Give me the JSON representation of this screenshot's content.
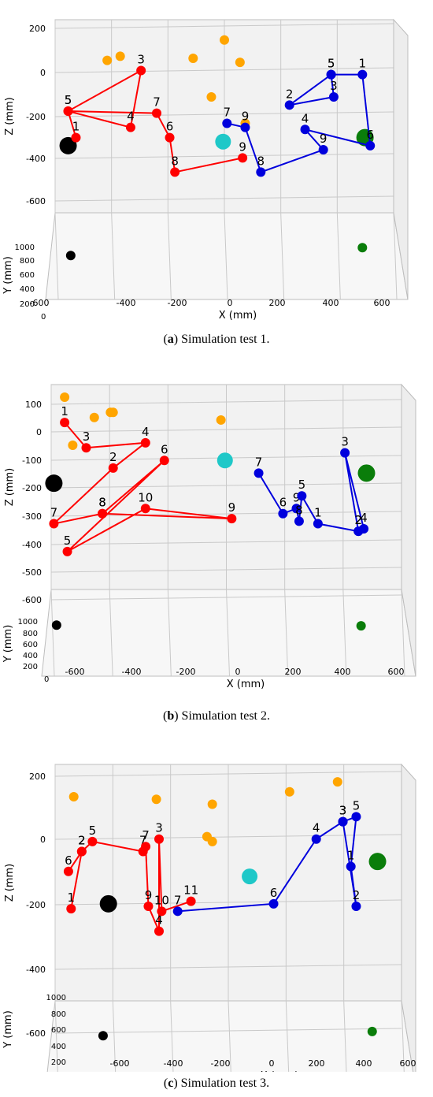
{
  "colors": {
    "team_red": "#ff0000",
    "team_blue": "#0000dd",
    "orange_targets": "#ffa500",
    "cyan_center": "#1fc8c8",
    "black_base": "#000000",
    "green_base": "#0a7d0a",
    "grid": "#c9c9c9",
    "pane": "#f2f2f2"
  },
  "captions": [
    {
      "letter": "a",
      "text": "Simulation test 1."
    },
    {
      "letter": "b",
      "text": "Simulation test 2."
    },
    {
      "letter": "c",
      "text": "Simulation test 3."
    }
  ],
  "chart_data": [
    {
      "type": "scatter",
      "title": "",
      "xlabel": "X (mm)",
      "ylabel": "Y (mm)",
      "zlabel": "Z (mm)",
      "x_ticks": [
        "-600",
        "-400",
        "-200",
        "0",
        "200",
        "400",
        "600"
      ],
      "y_ticks": [
        "200",
        "400",
        "600",
        "800",
        "1000"
      ],
      "z_ticks": [
        "200",
        "0",
        "-200",
        "-400",
        "-600"
      ],
      "xlim": [
        -650,
        650
      ],
      "zlim": [
        -700,
        250
      ],
      "orange_points": [
        [
          -450,
          50
        ],
        [
          -400,
          70
        ],
        [
          -120,
          60
        ],
        [
          0,
          150
        ],
        [
          60,
          40
        ],
        [
          -50,
          -130
        ],
        [
          80,
          -260
        ]
      ],
      "cyan_point": [
        -5,
        -350
      ],
      "black_point": [
        -600,
        -370
      ],
      "black_projection": [
        -590,
        770
      ],
      "green_point": [
        540,
        -330
      ],
      "green_projection": [
        530,
        880
      ],
      "red_path": [
        {
          "label": "1",
          "x": -570,
          "z": -330
        },
        {
          "label": "5",
          "x": -600,
          "z": -200
        },
        {
          "label": "3",
          "x": -320,
          "z": 0
        },
        {
          "label": "4",
          "x": -360,
          "z": -280
        },
        {
          "label": "5",
          "x": -600,
          "z": -200
        },
        {
          "label": "7",
          "x": -260,
          "z": -210
        },
        {
          "label": "6",
          "x": -210,
          "z": -330
        },
        {
          "label": "8",
          "x": -190,
          "z": -500
        },
        {
          "label": "9",
          "x": 70,
          "z": -430
        }
      ],
      "blue_path": [
        {
          "label": "7",
          "x": 10,
          "z": -260
        },
        {
          "label": "9",
          "x": 80,
          "z": -280
        },
        {
          "label": "8",
          "x": 140,
          "z": -500
        },
        {
          "label": "9",
          "x": 380,
          "z": -390
        },
        {
          "label": "4",
          "x": 310,
          "z": -290
        },
        {
          "label": "6",
          "x": 560,
          "z": -370
        },
        {
          "label": "1",
          "x": 530,
          "z": -20
        },
        {
          "label": "5",
          "x": 410,
          "z": -20
        },
        {
          "label": "3",
          "x": 420,
          "z": -130
        },
        {
          "label": "2",
          "x": 250,
          "z": -170
        },
        {
          "label": "5",
          "x": 410,
          "z": -20
        }
      ]
    },
    {
      "type": "scatter",
      "title": "",
      "xlabel": "X (mm)",
      "ylabel": "Y (mm)",
      "zlabel": "Z (mm)",
      "x_ticks": [
        "-600",
        "-400",
        "-200",
        "0",
        "200",
        "400",
        "600"
      ],
      "y_ticks": [
        "200",
        "400",
        "600",
        "800",
        "1000"
      ],
      "z_ticks": [
        "100",
        "0",
        "-100",
        "-200",
        "-300",
        "-400",
        "-500",
        "-600"
      ],
      "xlim": [
        -650,
        650
      ],
      "zlim": [
        -660,
        150
      ],
      "orange_points": [
        [
          -600,
          100
        ],
        [
          -570,
          -90
        ],
        [
          -490,
          20
        ],
        [
          -430,
          40
        ],
        [
          -420,
          40
        ],
        [
          -20,
          10
        ]
      ],
      "cyan_point": [
        -5,
        -150
      ],
      "black_point": [
        -640,
        -240
      ],
      "black_projection": [
        -630,
        870
      ],
      "green_point": [
        520,
        -200
      ],
      "green_projection": [
        500,
        860
      ],
      "red_path": [
        {
          "label": "1",
          "x": -600,
          "z": 0
        },
        {
          "label": "3",
          "x": -520,
          "z": -100
        },
        {
          "label": "4",
          "x": -300,
          "z": -80
        },
        {
          "label": "2",
          "x": -420,
          "z": -180
        },
        {
          "label": "7",
          "x": -640,
          "z": -400
        },
        {
          "label": "8",
          "x": -460,
          "z": -360
        },
        {
          "label": "6",
          "x": -230,
          "z": -150
        },
        {
          "label": "5",
          "x": -590,
          "z": -510
        },
        {
          "label": "10",
          "x": -300,
          "z": -340
        },
        {
          "label": "9",
          "x": 20,
          "z": -380
        },
        {
          "label": "8",
          "x": -460,
          "z": -360
        }
      ],
      "blue_path": [
        {
          "label": "7",
          "x": 120,
          "z": -200
        },
        {
          "label": "6",
          "x": 210,
          "z": -360
        },
        {
          "label": "9",
          "x": 260,
          "z": -340
        },
        {
          "label": "8",
          "x": 270,
          "z": -390
        },
        {
          "label": "5",
          "x": 280,
          "z": -290
        },
        {
          "label": "1",
          "x": 340,
          "z": -400
        },
        {
          "label": "2",
          "x": 490,
          "z": -430
        },
        {
          "label": "4",
          "x": 510,
          "z": -420
        },
        {
          "label": "3",
          "x": 440,
          "z": -120
        },
        {
          "label": "2",
          "x": 490,
          "z": -430
        }
      ]
    },
    {
      "type": "scatter",
      "title": "",
      "xlabel": "X (mm)",
      "ylabel": "Y (mm)",
      "zlabel": "Z (mm)",
      "x_ticks": [
        "-600",
        "-400",
        "-200",
        "0",
        "200",
        "400",
        "600"
      ],
      "y_ticks": [
        "200",
        "400",
        "600",
        "800",
        "1000"
      ],
      "z_ticks": [
        "200",
        "0",
        "-200",
        "-400",
        "-600"
      ],
      "xlim": [
        -650,
        650
      ],
      "zlim": [
        -700,
        250
      ],
      "orange_points": [
        [
          -580,
          120
        ],
        [
          -270,
          110
        ],
        [
          -60,
          90
        ],
        [
          230,
          140
        ],
        [
          410,
          180
        ],
        [
          -80,
          -40
        ],
        [
          -60,
          -60
        ]
      ],
      "cyan_point": [
        80,
        -200
      ],
      "black_point": [
        -450,
        -310
      ],
      "black_projection": [
        -470,
        880
      ],
      "green_point": [
        560,
        -140
      ],
      "green_projection": [
        540,
        940
      ],
      "red_path": [
        {
          "label": "1",
          "x": -590,
          "z": -330
        },
        {
          "label": "2",
          "x": -550,
          "z": -100
        },
        {
          "label": "6",
          "x": -600,
          "z": -180
        },
        {
          "label": "2",
          "x": -550,
          "z": -100
        },
        {
          "label": "5",
          "x": -510,
          "z": -60
        },
        {
          "label": "7",
          "x": -320,
          "z": -100
        },
        {
          "label": "7",
          "x": -310,
          "z": -80
        },
        {
          "label": "9",
          "x": -300,
          "z": -320
        },
        {
          "label": "4",
          "x": -260,
          "z": -420
        },
        {
          "label": "3",
          "x": -260,
          "z": -50
        },
        {
          "label": "10",
          "x": -250,
          "z": -340
        },
        {
          "label": "11",
          "x": -140,
          "z": -300
        }
      ],
      "blue_path": [
        {
          "label": "7",
          "x": -190,
          "z": -340
        },
        {
          "label": "6",
          "x": 170,
          "z": -310
        },
        {
          "label": "4",
          "x": 330,
          "z": -50
        },
        {
          "label": "3",
          "x": 430,
          "z": 20
        },
        {
          "label": "2",
          "x": 480,
          "z": -320
        },
        {
          "label": "1",
          "x": 460,
          "z": -160
        },
        {
          "label": "5",
          "x": 480,
          "z": 40
        },
        {
          "label": "3",
          "x": 430,
          "z": 20
        }
      ]
    }
  ]
}
